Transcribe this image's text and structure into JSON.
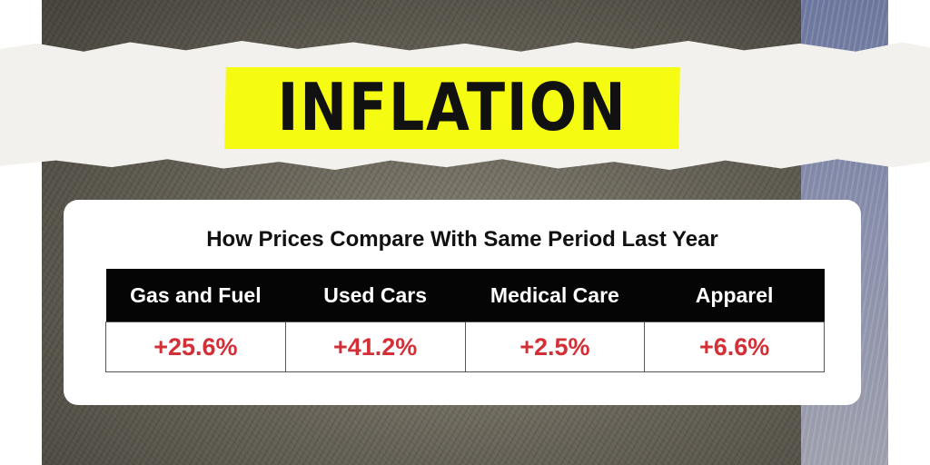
{
  "header": {
    "title": "INFLATION",
    "highlight_color": "#f6fb12"
  },
  "card": {
    "title": "How Prices Compare With Same Period Last Year",
    "columns": [
      "Gas and Fuel",
      "Used Cars",
      "Medical Care",
      "Apparel"
    ],
    "values": [
      "+25.6%",
      "+41.2%",
      "+2.5%",
      "+6.6%"
    ],
    "value_color": "#d32f37"
  },
  "chart_data": {
    "type": "table",
    "title": "How Prices Compare With Same Period Last Year",
    "categories": [
      "Gas and Fuel",
      "Used Cars",
      "Medical Care",
      "Apparel"
    ],
    "values": [
      25.6,
      41.2,
      2.5,
      6.6
    ],
    "units": "%"
  }
}
